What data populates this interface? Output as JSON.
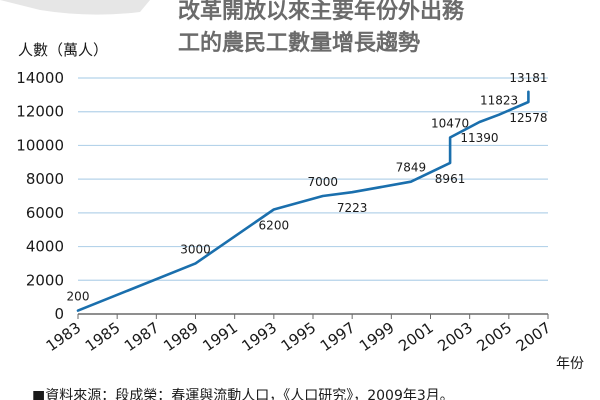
{
  "chart_data": {
    "type": "line",
    "title": "改革開放以來主要年份外出務工的農民工數量增長趨勢",
    "title_lines": [
      "改革開放以來主要年份外出務",
      "工的農民工數量增長趨勢"
    ],
    "ylabel": "人數（萬人）",
    "xlabel": "年份",
    "xlim": [
      1983,
      2007
    ],
    "ylim": [
      0,
      14000
    ],
    "grid": "horizontal",
    "x_ticks": [
      "1983",
      "1985",
      "1987",
      "1989",
      "1991",
      "1993",
      "1995",
      "1997",
      "1999",
      "2001",
      "2003",
      "2005",
      "2007"
    ],
    "y_ticks": [
      "0",
      "2000",
      "4000",
      "6000",
      "8000",
      "10000",
      "12000",
      "14000"
    ],
    "points": [
      {
        "x": 1983,
        "y": 200,
        "label": "200",
        "label_pos": "above"
      },
      {
        "x": 1989,
        "y": 3000,
        "label": "3000",
        "label_pos": "above"
      },
      {
        "x": 1993,
        "y": 6200,
        "label": "6200",
        "label_pos": "below"
      },
      {
        "x": 1995.5,
        "y": 7000,
        "label": "7000",
        "label_pos": "above"
      },
      {
        "x": 1997,
        "y": 7223,
        "label": "7223",
        "label_pos": "below"
      },
      {
        "x": 2000,
        "y": 7849,
        "label": "7849",
        "label_pos": "above"
      },
      {
        "x": 2002,
        "y": 8961,
        "label": "8961",
        "label_pos": "below"
      },
      {
        "x": 2002,
        "y": 10470,
        "label": "10470",
        "label_pos": "above"
      },
      {
        "x": 2003.5,
        "y": 11390,
        "label": "11390",
        "label_pos": "below"
      },
      {
        "x": 2004.5,
        "y": 11823,
        "label": "11823",
        "label_pos": "above"
      },
      {
        "x": 2006,
        "y": 12578,
        "label": "12578",
        "label_pos": "below"
      },
      {
        "x": 2006,
        "y": 13181,
        "label": "13181",
        "label_pos": "above"
      }
    ],
    "line_color": "#1a6fad",
    "grid_color": "#b5d3ea",
    "source": "■資料來源：段成榮：春運與流動人口，《人口研究》，2009年3月。"
  }
}
